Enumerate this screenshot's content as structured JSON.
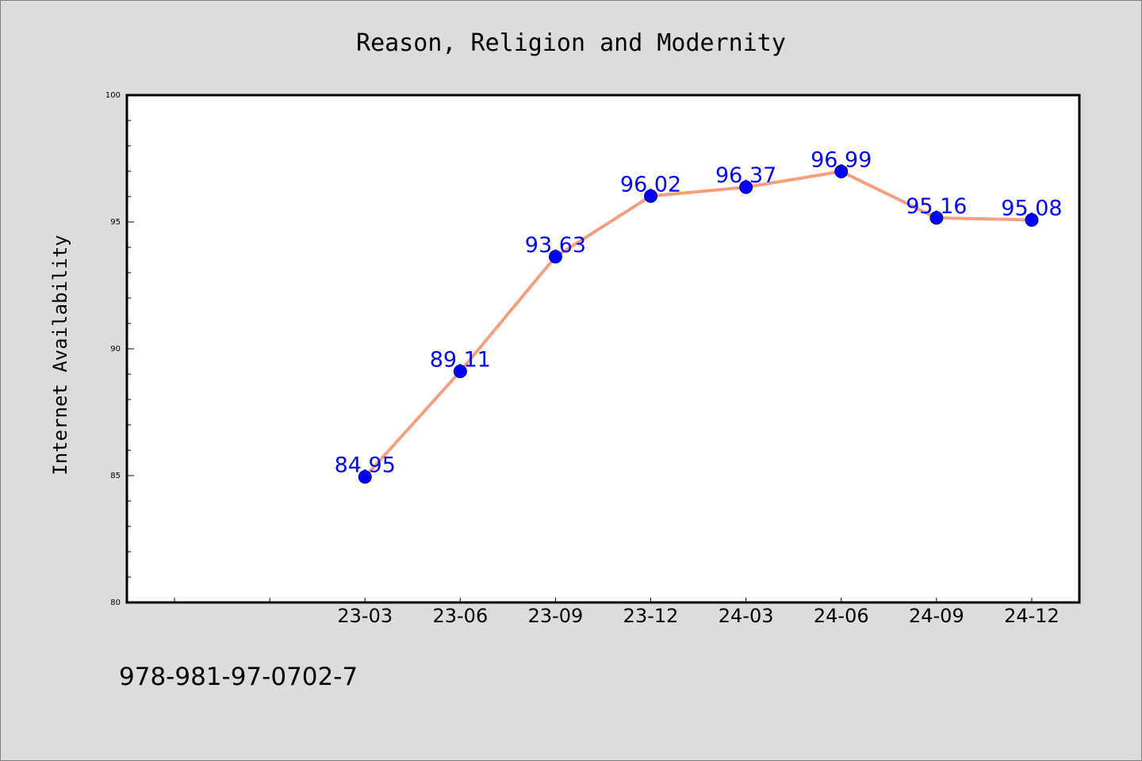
{
  "colors": {
    "background": "#dcdcdc",
    "plot_background": "#ffffff",
    "line": "#f4a080",
    "marker": "#0000ff",
    "data_label": "#0000ff"
  },
  "footer": {
    "isbn": "978-981-97-0702-7"
  },
  "chart_data": {
    "type": "line",
    "title": "Reason, Religion and Modernity",
    "xlabel": "",
    "ylabel": "Internet Availability",
    "ylim": [
      80,
      100
    ],
    "yticks": [
      80,
      85,
      90,
      95,
      100
    ],
    "yminor_step": 1,
    "x_categories": [
      "",
      "",
      "23-03",
      "23-06",
      "23-09",
      "23-12",
      "24-03",
      "24-06",
      "24-09",
      "24-12"
    ],
    "x": [
      "23-03",
      "23-06",
      "23-09",
      "23-12",
      "24-03",
      "24-06",
      "24-09",
      "24-12"
    ],
    "series": [
      {
        "values": [
          84.95,
          89.11,
          93.63,
          96.02,
          96.37,
          96.99,
          95.16,
          95.08
        ]
      }
    ],
    "data_labels": [
      "84.95",
      "89.11",
      "93.63",
      "96.02",
      "96.37",
      "96.99",
      "95.16",
      "95.08"
    ],
    "grid": false,
    "legend": "none"
  }
}
